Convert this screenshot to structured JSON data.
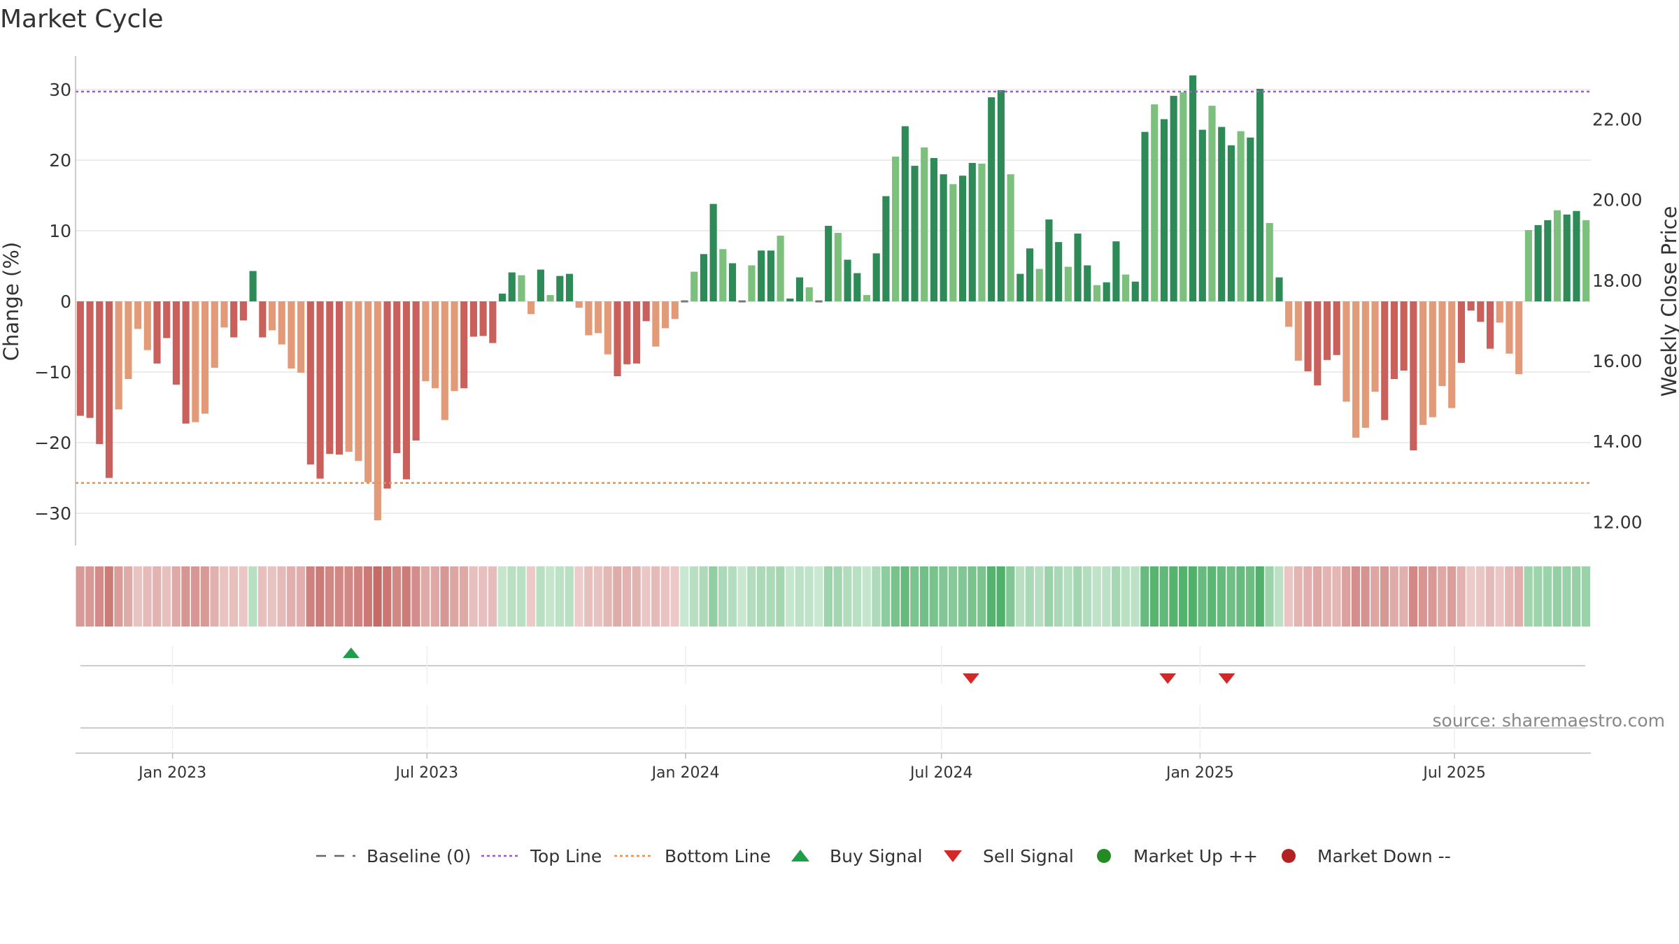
{
  "title": "Market Cycle",
  "source": "source: sharemaestro.com",
  "chart_data": {
    "type": "bar",
    "title": "Market Cycle",
    "ylabel": "Change (%)",
    "y2label": "Weekly Close Price",
    "ylim": [
      -35,
      35
    ],
    "y2lim": [
      11.5,
      23.5
    ],
    "y_ticks": [
      30,
      20,
      10,
      0,
      -10,
      -20,
      -30
    ],
    "y_tick_labels": [
      "30",
      "20",
      "10",
      "0",
      "−10",
      "−20",
      "−30"
    ],
    "y2_ticks": [
      22,
      20,
      18,
      16,
      14,
      12
    ],
    "y2_tick_labels": [
      "22.00",
      "20.00",
      "18.00",
      "16.00",
      "14.00",
      "12.00"
    ],
    "x_start": "2022-10-24",
    "x_end": "2025-10-06",
    "x_ticks": [
      "2023-01-01",
      "2023-07-01",
      "2024-01-01",
      "2024-07-01",
      "2025-01-01",
      "2025-07-01"
    ],
    "x_tick_labels": [
      "Jan 2023",
      "Jul 2023",
      "Jan 2024",
      "Jul 2024",
      "Jan 2025",
      "Jul 2025"
    ],
    "grid": true,
    "legend_position": "bottom",
    "top_line": 29.7,
    "bottom_line": -25.7,
    "baseline": 0,
    "values": [
      -16.2,
      -16.5,
      -20.2,
      -25,
      -15.3,
      -11,
      -3.9,
      -6.9,
      -8.8,
      -5.2,
      -11.8,
      -17.3,
      -17.1,
      -15.9,
      -9.4,
      -3.7,
      -5.1,
      -2.7,
      4.3,
      -5.1,
      -4.1,
      -6.1,
      -9.5,
      -10.1,
      -23.1,
      -25.1,
      -21.6,
      -21.7,
      -21.3,
      -22.6,
      -25.6,
      -31,
      -26.5,
      -21.5,
      -25.2,
      -19.7,
      -11.3,
      -12.3,
      -16.8,
      -12.7,
      -12.3,
      -5,
      -4.9,
      -5.9,
      1.1,
      4.1,
      3.7,
      -1.8,
      4.5,
      0.9,
      3.6,
      3.9,
      -0.9,
      -4.8,
      -4.5,
      -7.5,
      -10.6,
      -8.9,
      -8.8,
      -2.8,
      -6.4,
      -3.8,
      -2.5,
      0.1,
      4.2,
      6.7,
      13.8,
      7.4,
      5.4,
      0,
      5.1,
      7.2,
      7.2,
      9.3,
      0.4,
      3.4,
      2,
      0,
      10.7,
      9.7,
      5.9,
      4,
      0.9,
      6.8,
      14.9,
      20.5,
      24.8,
      19.2,
      21.8,
      20.3,
      18,
      16.6,
      17.8,
      19.6,
      19.5,
      28.9,
      29.9,
      18,
      3.9,
      7.5,
      4.6,
      11.6,
      8.4,
      4.9,
      9.6,
      5.1,
      2.3,
      2.7,
      8.5,
      3.8,
      2.8,
      24,
      27.9,
      25.8,
      29.1,
      29.6,
      32,
      24.3,
      27.7,
      24.7,
      22.1,
      24.1,
      23.2,
      30.1,
      11.1,
      3.4,
      -3.6,
      -8.4,
      -9.9,
      -11.9,
      -8.3,
      -7.6,
      -14.2,
      -19.3,
      -17.9,
      -12.8,
      -16.8,
      -11,
      -9.8,
      -21.1,
      -17.5,
      -16.4,
      -12,
      -15.1,
      -8.7,
      -1.3,
      -2.9,
      -6.7,
      -3,
      -7.4,
      -10.3,
      10.1,
      10.8,
      11.5,
      12.9,
      12.3,
      12.8,
      11.5
    ],
    "buy_signals": [
      "2023-05-08"
    ],
    "sell_signals": [
      "2024-07-22",
      "2024-12-09",
      "2025-01-20"
    ],
    "colors": {
      "strong_down": "#c9605c",
      "down": "#e39a78",
      "strong_up": "#2e8b57",
      "up": "#7dbf7d",
      "top_line": "#9b59d0",
      "bottom_line": "#ef8f4a",
      "baseline": "#666666",
      "buy": "#1e9e4a",
      "sell": "#d62728",
      "market_up": "#228b22",
      "market_down": "#b22222"
    }
  },
  "legend": [
    {
      "label": "Baseline (0)",
      "icon": "dash-line"
    },
    {
      "label": "Top Line",
      "icon": "dotted-line-purple"
    },
    {
      "label": "Bottom Line",
      "icon": "dotted-line-orange"
    },
    {
      "label": "Buy Signal",
      "icon": "triangle-up-green"
    },
    {
      "label": "Sell Signal",
      "icon": "triangle-down-red"
    },
    {
      "label": "Market Up ++",
      "icon": "circle-green"
    },
    {
      "label": "Market Down --",
      "icon": "circle-red"
    }
  ]
}
